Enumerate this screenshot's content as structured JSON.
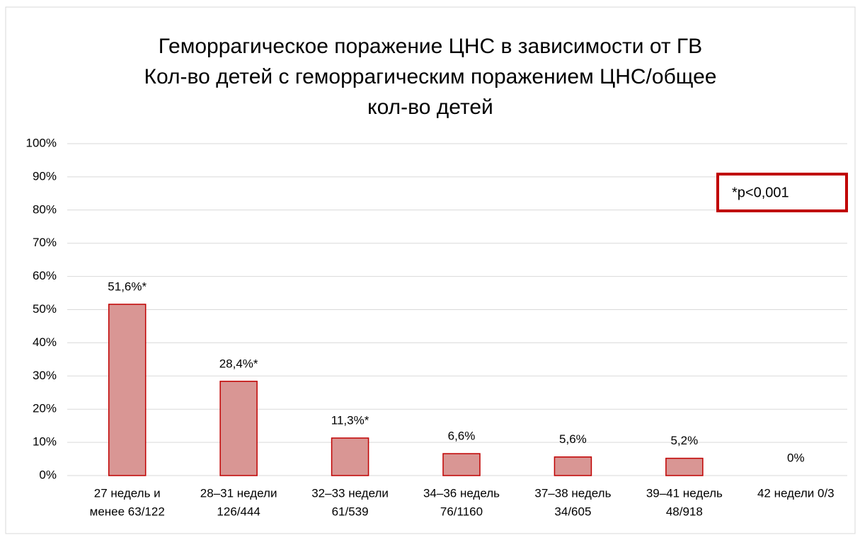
{
  "chart_data": {
    "type": "bar",
    "title": [
      "Геморрагическое поражение ЦНС в зависимости от ГВ",
      "Кол-во детей с геморрагическим поражением ЦНС/общее",
      "кол-во детей"
    ],
    "categories": [
      [
        "27 недель и",
        "менее 63/122"
      ],
      [
        "28–31 недели",
        "126/444"
      ],
      [
        "32–33 недели",
        "61/539"
      ],
      [
        "34–36 недель",
        "76/1160"
      ],
      [
        "37–38 недель",
        "34/605"
      ],
      [
        "39–41 недель",
        "48/918"
      ],
      [
        "42 недели 0/3"
      ]
    ],
    "values": [
      51.6,
      28.4,
      11.3,
      6.6,
      5.6,
      5.2,
      0
    ],
    "value_labels": [
      "51,6%*",
      "28,4%*",
      "11,3%*",
      "6,6%",
      "5,6%",
      "5,2%",
      "0%"
    ],
    "color": "#d99694",
    "edge_color": "#c00000",
    "ylim": [
      0,
      100
    ],
    "yticks": [
      {
        "value": 0,
        "label": "0%"
      },
      {
        "value": 10,
        "label": "10%"
      },
      {
        "value": 20,
        "label": "20%"
      },
      {
        "value": 30,
        "label": "30%"
      },
      {
        "value": 40,
        "label": "40%"
      },
      {
        "value": 50,
        "label": "50%"
      },
      {
        "value": 60,
        "label": "60%"
      },
      {
        "value": 70,
        "label": "70%"
      },
      {
        "value": 80,
        "label": "80%"
      },
      {
        "value": 90,
        "label": "90%"
      },
      {
        "value": 100,
        "label": "100%"
      }
    ],
    "grid": true,
    "annotation": "*p<0,001"
  }
}
